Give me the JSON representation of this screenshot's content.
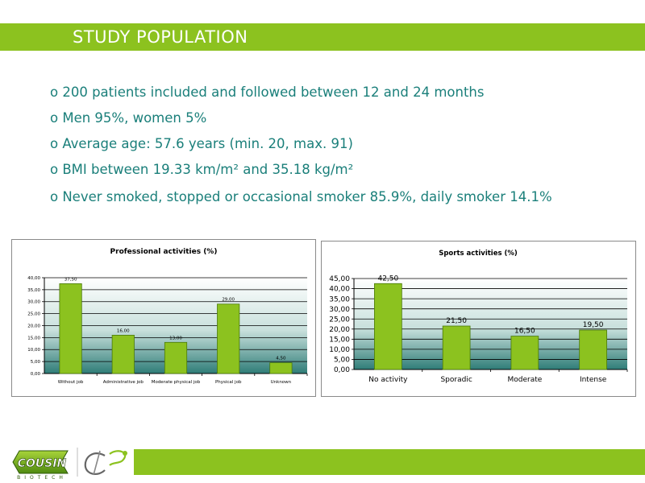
{
  "header": {
    "title": "STUDY POPULATION"
  },
  "bullets": [
    "o 200 patients included and followed between 12 and 24 months",
    "o Men 95%, women 5%",
    "o Average age: 57.6 years (min. 20, max. 91)",
    "o BMI between 19.33 km/m² and 35.18 kg/m²",
    "o Never smoked, stopped or occasional smoker 85.9%,  daily smoker 14.1%"
  ],
  "colors": {
    "accent": "#8cc21f",
    "text": "#1a7f7a",
    "bar": "#8cc21f",
    "bar_border": "#4a7a0a"
  },
  "chart_data": [
    {
      "type": "bar",
      "title": "Professional activities (%)",
      "categories": [
        "Without job",
        "Administrative job",
        "Moderate physical job",
        "Physical job",
        "Unknown"
      ],
      "values": [
        37.5,
        16.0,
        13.0,
        29.0,
        4.5
      ],
      "value_labels": [
        "37,50",
        "16,00",
        "13,00",
        "29,00",
        "4,50"
      ],
      "ylim": [
        0,
        40
      ],
      "yticks": [
        "0,00",
        "5,00",
        "10,00",
        "15,00",
        "20,00",
        "25,00",
        "30,00",
        "35,00",
        "40,00"
      ],
      "grid": true
    },
    {
      "type": "bar",
      "title": "Sports activities (%)",
      "categories": [
        "No activity",
        "Sporadic",
        "Moderate",
        "Intense"
      ],
      "values": [
        42.5,
        21.5,
        16.5,
        19.5
      ],
      "value_labels": [
        "42,50",
        "21,50",
        "16,50",
        "19,50"
      ],
      "ylim": [
        0,
        45
      ],
      "yticks": [
        "0,00",
        "5,00",
        "10,00",
        "15,00",
        "20,00",
        "25,00",
        "30,00",
        "35,00",
        "40,00",
        "45,00"
      ],
      "grid": true
    }
  ],
  "logo": {
    "brand": "COUSIN",
    "sub": "BIOTECH",
    "mark": "CHC"
  }
}
